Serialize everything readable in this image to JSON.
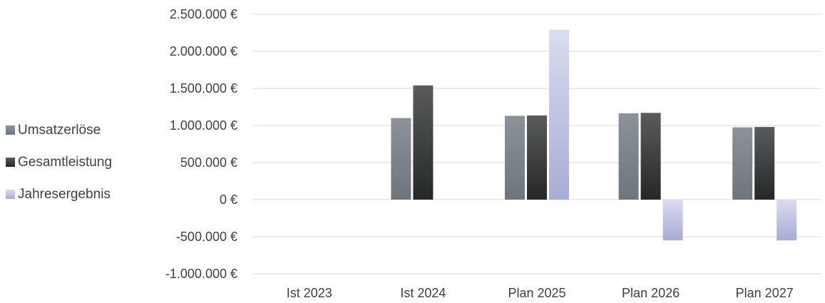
{
  "chart_data": {
    "type": "bar",
    "title": "",
    "xlabel": "",
    "ylabel": "",
    "categories": [
      "Ist 2023",
      "Ist 2024",
      "Plan 2025",
      "Plan 2026",
      "Plan 2027"
    ],
    "series": [
      {
        "name": "Umsatzerlöse",
        "color": "#858b92",
        "values": [
          0,
          1100000,
          1130000,
          1165000,
          975000
        ]
      },
      {
        "name": "Gesamtleistung",
        "color": "#3a3b3b",
        "values": [
          0,
          1540000,
          1135000,
          1170000,
          980000
        ]
      },
      {
        "name": "Jahresergebnis",
        "color": "#c4c7e6",
        "values": [
          0,
          0,
          2290000,
          -550000,
          -550000
        ]
      }
    ],
    "ylim": [
      -1000000,
      2500000
    ],
    "y_ticks": [
      2500000,
      2000000,
      1500000,
      1000000,
      500000,
      0,
      -500000,
      -1000000
    ],
    "y_tick_labels": [
      "2.500.000 €",
      "2.000.000 €",
      "1.500.000 €",
      "1.000.000 €",
      "500.000 €",
      "0 €",
      "-500.000 €",
      "-1.000.000 €"
    ],
    "grid": true,
    "legend_position": "left"
  }
}
